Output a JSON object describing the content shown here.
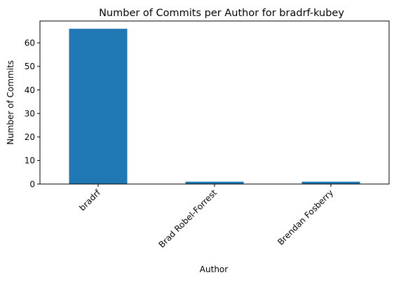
{
  "chart_data": {
    "type": "bar",
    "title": "Number of Commits per Author for bradrf-kubey",
    "xlabel": "Author",
    "ylabel": "Number of Commits",
    "categories": [
      "bradrf",
      "Brad Robel-Forrest",
      "Brendan Fosberry"
    ],
    "values": [
      66,
      1,
      1
    ],
    "ylim": [
      0,
      69.3
    ],
    "yticks": [
      0,
      10,
      20,
      30,
      40,
      50,
      60
    ],
    "bar_color": "#1f77b4",
    "grid": false,
    "legend": "none"
  }
}
